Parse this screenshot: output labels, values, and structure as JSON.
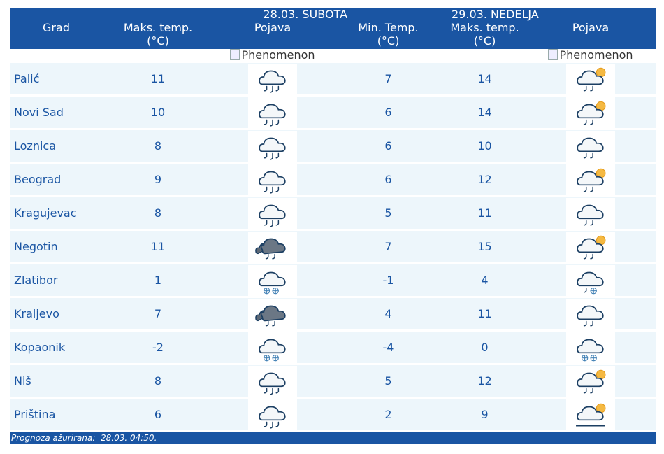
{
  "header": {
    "grad": "Grad",
    "day1": "28.03. SUBOTA",
    "day2": "29.03. NEDELJA",
    "max_temp": "Maks. temp.",
    "unit": "(°C)",
    "min_temp": "Min. Temp.",
    "phenomenon": "Pojava",
    "img_alt": "Phenomenon"
  },
  "rows": [
    {
      "city": "Palić",
      "d1_max": "11",
      "d1_icon": "cloud-rain-icon",
      "d2_min": "7",
      "d2_max": "14",
      "d2_icon": "sun-cloud-rain-icon"
    },
    {
      "city": "Novi Sad",
      "d1_max": "10",
      "d1_icon": "cloud-rain-icon",
      "d2_min": "6",
      "d2_max": "14",
      "d2_icon": "sun-cloud-rain-icon"
    },
    {
      "city": "Loznica",
      "d1_max": "8",
      "d1_icon": "cloud-rain-icon",
      "d2_min": "6",
      "d2_max": "10",
      "d2_icon": "cloud-rain-light-icon"
    },
    {
      "city": "Beograd",
      "d1_max": "9",
      "d1_icon": "cloud-rain-icon",
      "d2_min": "6",
      "d2_max": "12",
      "d2_icon": "sun-cloud-rain-icon"
    },
    {
      "city": "Kragujevac",
      "d1_max": "8",
      "d1_icon": "cloud-rain-icon",
      "d2_min": "5",
      "d2_max": "11",
      "d2_icon": "cloud-rain-light-icon"
    },
    {
      "city": "Negotin",
      "d1_max": "11",
      "d1_icon": "dark-cloud-rain-icon",
      "d2_min": "7",
      "d2_max": "15",
      "d2_icon": "sun-cloud-rain-icon"
    },
    {
      "city": "Zlatibor",
      "d1_max": "1",
      "d1_icon": "cloud-snow-icon",
      "d2_min": "-1",
      "d2_max": "4",
      "d2_icon": "cloud-rain-snow-icon"
    },
    {
      "city": "Kraljevo",
      "d1_max": "7",
      "d1_icon": "dark-cloud-rain-icon",
      "d2_min": "4",
      "d2_max": "11",
      "d2_icon": "cloud-rain-light-icon"
    },
    {
      "city": "Kopaonik",
      "d1_max": "-2",
      "d1_icon": "cloud-snow-icon",
      "d2_min": "-4",
      "d2_max": "0",
      "d2_icon": "cloud-snow-icon"
    },
    {
      "city": "Niš",
      "d1_max": "8",
      "d1_icon": "cloud-rain-icon",
      "d2_min": "5",
      "d2_max": "12",
      "d2_icon": "sun-cloud-rain-icon"
    },
    {
      "city": "Priština",
      "d1_max": "6",
      "d1_icon": "cloud-rain-icon",
      "d2_min": "2",
      "d2_max": "9",
      "d2_icon": "sun-cloud-icon"
    }
  ],
  "footer": {
    "label": "Prognoza ažurirana:",
    "value": "28.03. 04:50."
  },
  "colors": {
    "header_bg": "#1a55a3",
    "row_bg": "#edf6fb",
    "text": "#1a55a3"
  }
}
